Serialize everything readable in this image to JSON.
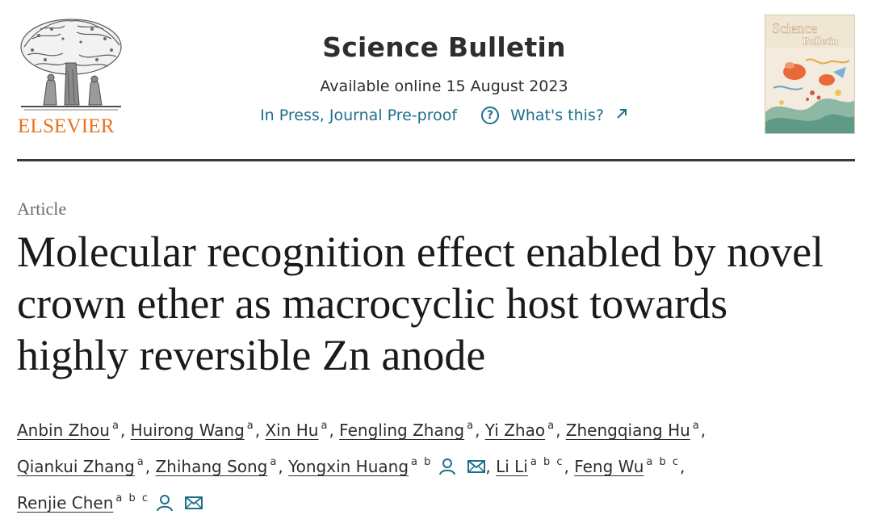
{
  "header": {
    "publisher": "ELSEVIER",
    "journal_title": "Science Bulletin",
    "available_online": "Available online 15 August 2023",
    "status": "In Press, Journal Pre-proof",
    "help_link": "What's this?",
    "help_icon_glyph": "?",
    "cover_title_line1": "Science",
    "cover_title_line2": "Bulletin"
  },
  "article": {
    "type": "Article",
    "title": "Molecular recognition effect enabled by novel crown ether as macrocyclic host towards highly reversible Zn anode"
  },
  "authors": [
    {
      "name": "Anbin Zhou",
      "aff": "a",
      "sep": ","
    },
    {
      "name": "Huirong Wang",
      "aff": "a",
      "sep": ","
    },
    {
      "name": "Xin Hu",
      "aff": "a",
      "sep": ","
    },
    {
      "name": "Fengling Zhang",
      "aff": "a",
      "sep": ","
    },
    {
      "name": "Yi Zhao",
      "aff": "a",
      "sep": ","
    },
    {
      "name": "Zhengqiang Hu",
      "aff": "a",
      "sep": ","
    },
    {
      "name": "Qiankui Zhang",
      "aff": "a",
      "sep": ","
    },
    {
      "name": "Zhihang Song",
      "aff": "a",
      "sep": ","
    },
    {
      "name": "Yongxin Huang",
      "aff": "a b",
      "sep": ","
    },
    {
      "name": "Li Li",
      "aff": "a b c",
      "sep": ","
    },
    {
      "name": "Feng Wu",
      "aff": "a b c",
      "sep": ","
    },
    {
      "name": "Renjie Chen",
      "aff": "a b c",
      "sep": ""
    }
  ],
  "icons": {
    "person": "person-icon",
    "email": "email-icon",
    "external_link": "external-link-icon",
    "help": "help-circle-icon"
  },
  "colors": {
    "link": "#1f6f8b",
    "publisher_orange": "#e9711c",
    "text": "#2e2e2e"
  }
}
